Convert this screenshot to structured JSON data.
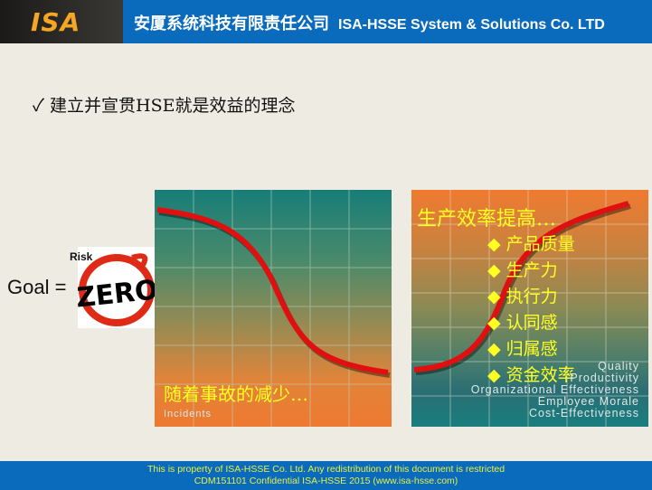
{
  "header": {
    "logo": "ISA",
    "title_cn": "安厦系统科技有限责任公司",
    "title_en": "ISA-HSSE  System & Solutions Co. LTD"
  },
  "bullet": {
    "icon": "check-icon",
    "mark": "✓",
    "text": "建立并宣贯HSE就是效益的理念"
  },
  "goal": {
    "label": "Goal =",
    "risk": "Risk",
    "zero": "ZERO"
  },
  "left_panel": {
    "caption": "随着事故的减少…",
    "label": "Incidents"
  },
  "right_panel": {
    "headline": "生产效率提高…",
    "items": [
      "产品质量",
      "生产力",
      "执行力",
      "认同感",
      "归属感",
      "资金效率"
    ],
    "labels_en": [
      "Quality",
      "Productivity",
      "Organizational Effectiveness",
      "Employee Morale",
      "Cost-Effectiveness"
    ]
  },
  "footer": {
    "line1": "This is property of ISA-HSSE Co. Ltd. Any redistribution of this document is restricted",
    "line2": "CDM151101 Confidential   ISA-HSSE 2015  (www.isa-hsse.com)"
  },
  "colors": {
    "brand_blue": "#0a6bbd",
    "logo_orange": "#f5a623",
    "curve_red": "#e01010",
    "text_yellow": "#ffff22"
  }
}
